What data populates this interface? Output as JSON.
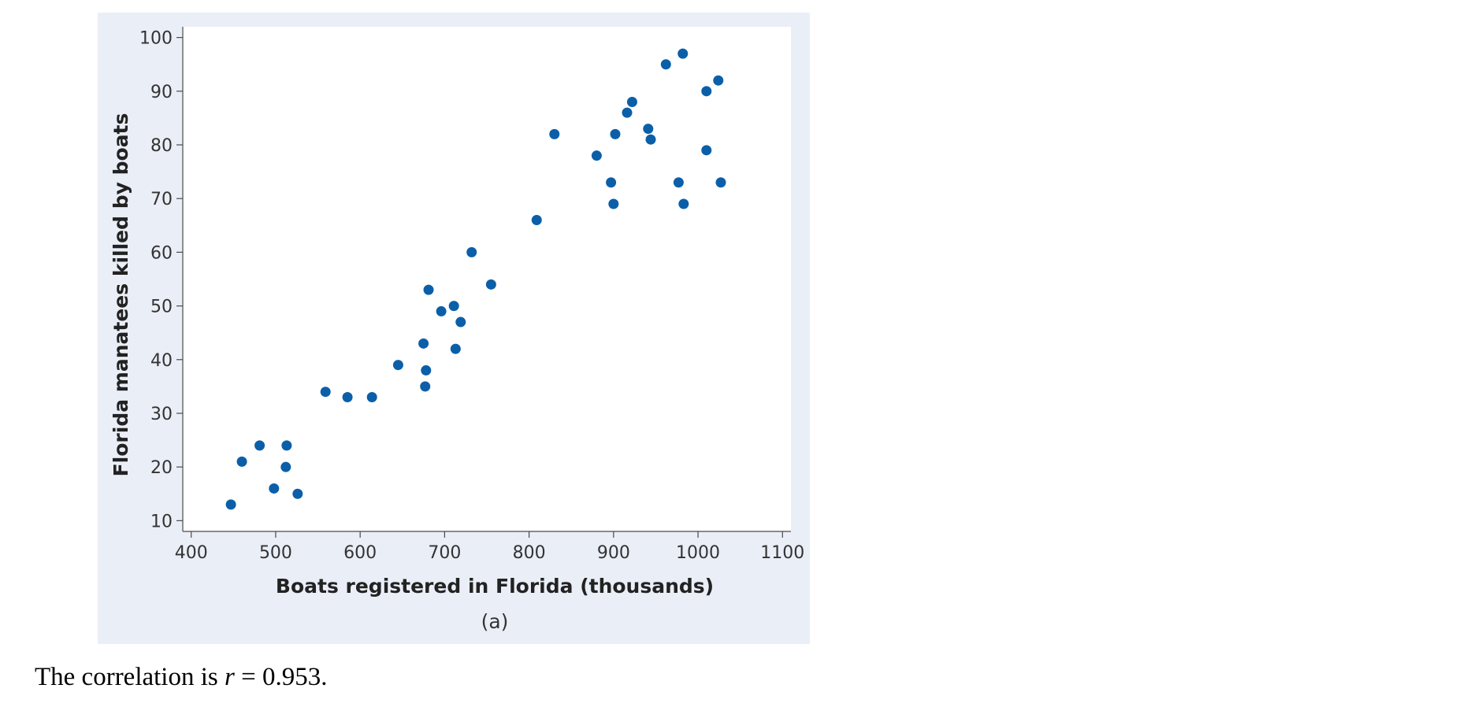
{
  "chart_data": {
    "type": "scatter",
    "xlabel": "Boats registered in Florida (thousands)",
    "ylabel": "Florida manatees killed by boats",
    "caption": "(a)",
    "xlim": [
      390,
      1110
    ],
    "ylim": [
      8,
      102
    ],
    "xticks": [
      400,
      500,
      600,
      700,
      800,
      900,
      1000,
      1100
    ],
    "yticks": [
      10,
      20,
      30,
      40,
      50,
      60,
      70,
      80,
      90,
      100
    ],
    "grid": false,
    "points": [
      {
        "x": 447,
        "y": 13
      },
      {
        "x": 460,
        "y": 21
      },
      {
        "x": 481,
        "y": 24
      },
      {
        "x": 498,
        "y": 16
      },
      {
        "x": 513,
        "y": 24
      },
      {
        "x": 512,
        "y": 20
      },
      {
        "x": 526,
        "y": 15
      },
      {
        "x": 559,
        "y": 34
      },
      {
        "x": 585,
        "y": 33
      },
      {
        "x": 614,
        "y": 33
      },
      {
        "x": 645,
        "y": 39
      },
      {
        "x": 675,
        "y": 43
      },
      {
        "x": 678,
        "y": 38
      },
      {
        "x": 677,
        "y": 35
      },
      {
        "x": 681,
        "y": 53
      },
      {
        "x": 696,
        "y": 49
      },
      {
        "x": 711,
        "y": 50
      },
      {
        "x": 719,
        "y": 47
      },
      {
        "x": 713,
        "y": 42
      },
      {
        "x": 732,
        "y": 60
      },
      {
        "x": 755,
        "y": 54
      },
      {
        "x": 809,
        "y": 66
      },
      {
        "x": 830,
        "y": 82
      },
      {
        "x": 880,
        "y": 78
      },
      {
        "x": 897,
        "y": 73
      },
      {
        "x": 900,
        "y": 69
      },
      {
        "x": 902,
        "y": 82
      },
      {
        "x": 916,
        "y": 86
      },
      {
        "x": 922,
        "y": 88
      },
      {
        "x": 941,
        "y": 83
      },
      {
        "x": 944,
        "y": 81
      },
      {
        "x": 962,
        "y": 95
      },
      {
        "x": 982,
        "y": 97
      },
      {
        "x": 977,
        "y": 73
      },
      {
        "x": 983,
        "y": 69
      },
      {
        "x": 1010,
        "y": 90
      },
      {
        "x": 1010,
        "y": 79
      },
      {
        "x": 1024,
        "y": 92
      },
      {
        "x": 1027,
        "y": 73
      }
    ]
  },
  "colors": {
    "panel_background": "#eaeef7",
    "plot_background": "#ffffff",
    "point": "#0b5fa9"
  },
  "footer": {
    "prefix": "The correlation is ",
    "variable": "r",
    "suffix": " = 0.953."
  }
}
